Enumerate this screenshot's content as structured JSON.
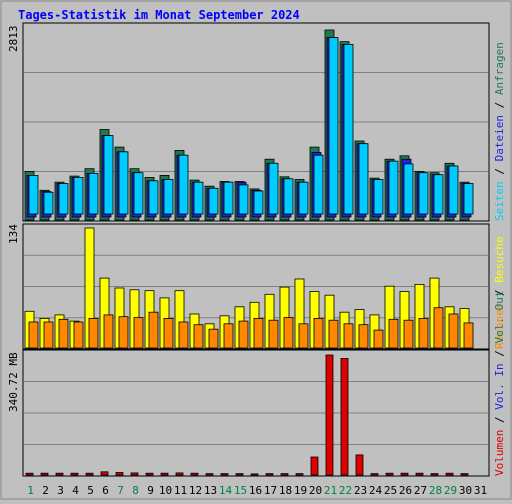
{
  "title": "Tages-Statistik im Monat September 2024",
  "colors": {
    "background": "#c0c0c0",
    "title": "#0000ff",
    "anfragen": "#1f7a52",
    "dateien": "#2222dd",
    "seiten": "#00ccff",
    "besuche": "#ffff00",
    "rechner": "#ff8800",
    "volumen": "#dd0000",
    "weekend_label": "#008040",
    "weekday_label": "#000000"
  },
  "chart_data": [
    {
      "type": "bar",
      "name": "top",
      "ylabel": "2813",
      "ymax": 2813,
      "categories": [
        "1",
        "2",
        "3",
        "4",
        "5",
        "6",
        "7",
        "8",
        "9",
        "10",
        "11",
        "12",
        "13",
        "14",
        "15",
        "16",
        "17",
        "18",
        "19",
        "20",
        "21",
        "22",
        "23",
        "24",
        "25",
        "26",
        "27",
        "28",
        "29",
        "30",
        "31"
      ],
      "series": [
        {
          "name": "Anfragen",
          "values": [
            720,
            440,
            560,
            650,
            760,
            1340,
            1080,
            760,
            630,
            660,
            1030,
            590,
            500,
            570,
            570,
            460,
            900,
            640,
            600,
            1080,
            2813,
            2640,
            1170,
            620,
            900,
            950,
            720,
            700,
            840,
            560,
            0
          ]
        },
        {
          "name": "Dateien",
          "values": [
            660,
            420,
            540,
            630,
            690,
            1250,
            1010,
            700,
            580,
            600,
            960,
            560,
            470,
            560,
            560,
            440,
            840,
            610,
            560,
            1000,
            2700,
            2600,
            1130,
            600,
            870,
            900,
            700,
            670,
            800,
            540,
            0
          ]
        },
        {
          "name": "Seiten",
          "values": [
            660,
            410,
            540,
            630,
            690,
            1250,
            1010,
            700,
            580,
            600,
            960,
            560,
            470,
            560,
            520,
            430,
            840,
            610,
            560,
            960,
            2700,
            2600,
            1130,
            600,
            870,
            830,
            700,
            670,
            800,
            540,
            0
          ]
        }
      ],
      "legend": [
        "Anfragen",
        "Dateien",
        "Seiten"
      ]
    },
    {
      "type": "bar",
      "name": "middle",
      "ylabel": "134",
      "ymax": 134,
      "series": [
        {
          "name": "Besuche",
          "values": [
            41,
            33,
            37,
            30,
            134,
            78,
            67,
            65,
            64,
            56,
            64,
            38,
            27,
            36,
            46,
            51,
            60,
            68,
            77,
            63,
            59,
            40,
            43,
            37,
            69,
            63,
            71,
            78,
            46,
            44,
            0
          ]
        },
        {
          "name": "Rechner",
          "values": [
            29,
            29,
            32,
            29,
            33,
            37,
            35,
            34,
            40,
            33,
            29,
            26,
            21,
            27,
            30,
            33,
            31,
            34,
            27,
            33,
            31,
            27,
            26,
            20,
            32,
            31,
            33,
            45,
            38,
            28,
            0
          ]
        }
      ],
      "legend": [
        "Besuche",
        "Rechner"
      ]
    },
    {
      "type": "bar",
      "name": "bottom",
      "ylabel": "340.72 MB",
      "ymax": 340.72,
      "series": [
        {
          "name": "Volumen",
          "values": [
            5,
            5,
            5,
            5,
            5,
            9,
            7,
            6,
            5,
            5,
            6,
            5,
            4,
            4,
            4,
            3,
            4,
            4,
            4,
            51,
            340.72,
            331,
            57,
            4,
            5,
            5,
            5,
            4,
            5,
            4,
            0
          ]
        }
      ],
      "legend": [
        "Volumen",
        "Vol. In",
        "Vol. Out"
      ]
    }
  ],
  "weekend_days": [
    1,
    7,
    8,
    14,
    15,
    21,
    22,
    28,
    29
  ]
}
